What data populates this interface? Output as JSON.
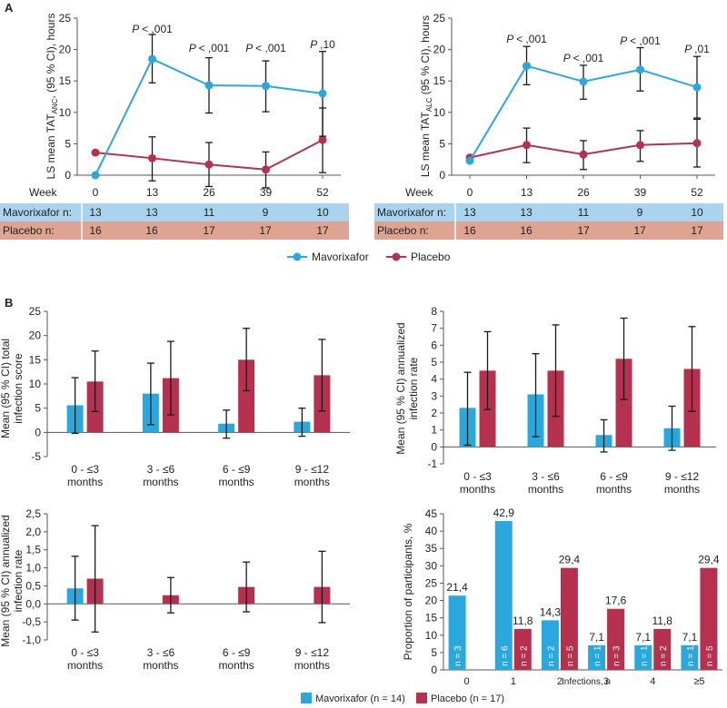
{
  "panels": {
    "a_label": "A",
    "b_label": "B"
  },
  "colors": {
    "mavorixafor": "#29a8dd",
    "placebo": "#b5314e",
    "row_mav": "#a9d3ee",
    "row_pla": "#dea391",
    "axis": "#555555",
    "errorbar": "#1a1a1a"
  },
  "week_label": "Week",
  "tables": {
    "mav_label": "Mavorixafor n:",
    "pla_label": "Placebo n:",
    "anc": {
      "mav": [
        "13",
        "13",
        "11",
        "9",
        "10"
      ],
      "pla": [
        "16",
        "16",
        "17",
        "17",
        "17"
      ]
    },
    "alc": {
      "mav": [
        "13",
        "13",
        "11",
        "9",
        "10"
      ],
      "pla": [
        "16",
        "16",
        "17",
        "17",
        "17"
      ]
    }
  },
  "legend_a": {
    "mav": "Mavorixafor",
    "pla": "Placebo"
  },
  "legend_b": {
    "mav": "Mavorixafor (n = 14)",
    "pla": "Placebo (n = 17)"
  },
  "chart_data": [
    {
      "id": "anc",
      "type": "line",
      "ylabel_parts": [
        "LS mean TAT",
        "ANC",
        ", (95 % CI), hours"
      ],
      "x": [
        0,
        13,
        26,
        39,
        52
      ],
      "xticks": [
        "0",
        "13",
        "26",
        "39",
        "52"
      ],
      "ylim": [
        0,
        25
      ],
      "yticks": [
        0,
        5,
        10,
        15,
        20,
        25
      ],
      "series": [
        {
          "name": "Mavorixafor",
          "values": [
            0,
            18.5,
            14.3,
            14.2,
            13.0
          ],
          "lower": [
            null,
            14.7,
            9.9,
            10.1,
            6.2
          ],
          "upper": [
            null,
            22.4,
            18.7,
            18.2,
            19.7
          ]
        },
        {
          "name": "Placebo",
          "values": [
            3.6,
            2.7,
            1.7,
            0.9,
            5.6
          ],
          "lower": [
            null,
            -0.9,
            -1.8,
            -2.0,
            0.4
          ],
          "upper": [
            null,
            6.1,
            5.2,
            3.7,
            10.7
          ]
        }
      ],
      "annotations": [
        {
          "x": 13,
          "label": "< ,001"
        },
        {
          "x": 26,
          "label": "< ,001"
        },
        {
          "x": 39,
          "label": "< ,001"
        },
        {
          "x": 52,
          "label": ",10"
        }
      ]
    },
    {
      "id": "alc",
      "type": "line",
      "ylabel_parts": [
        "LS mean TAT",
        "ALC",
        " (95 % CI), hours"
      ],
      "x": [
        0,
        13,
        26,
        39,
        52
      ],
      "xticks": [
        "0",
        "13",
        "26",
        "39",
        "52"
      ],
      "ylim": [
        0,
        25
      ],
      "yticks": [
        0,
        5,
        10,
        15,
        20,
        25
      ],
      "series": [
        {
          "name": "Mavorixafor",
          "values": [
            2.3,
            17.4,
            14.9,
            16.8,
            14.0
          ],
          "lower": [
            null,
            14.4,
            12.1,
            13.4,
            9.1
          ],
          "upper": [
            null,
            20.5,
            17.5,
            20.3,
            18.9
          ]
        },
        {
          "name": "Placebo",
          "values": [
            2.8,
            4.8,
            3.3,
            4.8,
            5.1
          ],
          "lower": [
            null,
            2.0,
            0.9,
            2.2,
            1.3
          ],
          "upper": [
            null,
            7.5,
            5.5,
            7.1,
            8.9
          ]
        }
      ],
      "annotations": [
        {
          "x": 13,
          "label": "< ,001"
        },
        {
          "x": 26,
          "label": "< ,001"
        },
        {
          "x": 39,
          "label": "< ,001"
        },
        {
          "x": 52,
          "label": ",01"
        }
      ]
    },
    {
      "id": "score",
      "type": "bar",
      "ylabel_lines": [
        "Mean (95 % CI) total",
        "infection score"
      ],
      "categories": [
        [
          "0 - ≤3",
          "months"
        ],
        [
          "3 - ≤6",
          "months"
        ],
        [
          "6 - ≤9",
          "months"
        ],
        [
          "9 - ≤12",
          "months"
        ]
      ],
      "ylim": [
        -5,
        25
      ],
      "yticks": [
        -5,
        0,
        5,
        10,
        15,
        20,
        25
      ],
      "series": [
        {
          "name": "Mavorixafor",
          "values": [
            5.6,
            8.0,
            1.8,
            2.2
          ],
          "lower": [
            -0.2,
            1.6,
            -1.2,
            -0.8
          ],
          "upper": [
            11.3,
            14.3,
            4.6,
            5.0
          ]
        },
        {
          "name": "Placebo",
          "values": [
            10.5,
            11.2,
            15.0,
            11.8
          ],
          "lower": [
            4.3,
            3.6,
            8.6,
            4.4
          ],
          "upper": [
            16.8,
            18.8,
            21.5,
            19.2
          ]
        }
      ]
    },
    {
      "id": "rate1",
      "type": "bar",
      "ylabel_lines": [
        "Mean (95 % CI) annualized",
        "infection rate"
      ],
      "categories": [
        [
          "0 - ≤3",
          "months"
        ],
        [
          "3 - ≤6",
          "months"
        ],
        [
          "6 - ≤9",
          "months"
        ],
        [
          "9 - ≤12",
          "months"
        ]
      ],
      "ylim": [
        -1,
        8
      ],
      "yticks": [
        -1,
        0,
        1,
        2,
        3,
        4,
        5,
        6,
        7,
        8
      ],
      "series": [
        {
          "name": "Mavorixafor",
          "values": [
            2.3,
            3.1,
            0.7,
            1.1
          ],
          "lower": [
            0.1,
            0.6,
            -0.3,
            -0.2
          ],
          "upper": [
            4.4,
            5.5,
            1.6,
            2.4
          ]
        },
        {
          "name": "Placebo",
          "values": [
            4.5,
            4.5,
            5.2,
            4.6
          ],
          "lower": [
            2.2,
            1.8,
            2.8,
            2.1
          ],
          "upper": [
            6.8,
            7.2,
            7.6,
            7.1
          ]
        }
      ]
    },
    {
      "id": "rate2",
      "type": "bar",
      "ylabel_lines": [
        "Mean (95 % CI) annualized",
        "infection rate"
      ],
      "categories": [
        [
          "0 - ≤3",
          "months"
        ],
        [
          "3 - ≤6",
          "months"
        ],
        [
          "6 - ≤9",
          "months"
        ],
        [
          "9 - ≤12",
          "months"
        ]
      ],
      "ylim": [
        -1.0,
        2.5
      ],
      "yticks": [
        "-1,0",
        "-0,5",
        "0,0",
        "0,5",
        "1,0",
        "1,5",
        "2,0",
        "2,5"
      ],
      "ytick_values": [
        -1.0,
        -0.5,
        0,
        0.5,
        1.0,
        1.5,
        2.0,
        2.5
      ],
      "series": [
        {
          "name": "Mavorixafor",
          "values": [
            0.43,
            null,
            null,
            null
          ],
          "lower": [
            -0.45,
            null,
            null,
            null
          ],
          "upper": [
            1.32,
            null,
            null,
            null
          ]
        },
        {
          "name": "Placebo",
          "values": [
            0.7,
            0.24,
            0.47,
            0.47
          ],
          "lower": [
            -0.78,
            -0.25,
            -0.22,
            -0.52
          ],
          "upper": [
            2.17,
            0.73,
            1.16,
            1.46
          ]
        }
      ]
    },
    {
      "id": "proportion",
      "type": "bar",
      "ylabel_lines": [
        "Proportion of participants, %"
      ],
      "xlabel": "Infections, n",
      "categories": [
        "0",
        "1",
        "2",
        "3",
        "4",
        "≥5"
      ],
      "ylim": [
        0,
        45
      ],
      "yticks": [
        0,
        5,
        10,
        15,
        20,
        25,
        30,
        35,
        40,
        45
      ],
      "series": [
        {
          "name": "Mavorixafor",
          "values": [
            21.4,
            42.9,
            14.3,
            7.1,
            7.1,
            7.1
          ],
          "labels": [
            "21,4",
            "42,9",
            "14,3",
            "7,1",
            "7,1",
            "7,1"
          ],
          "n": [
            "n = 3",
            "n = 6",
            "n = 2",
            "n = 1",
            "n = 1",
            "n = 1"
          ]
        },
        {
          "name": "Placebo",
          "values": [
            null,
            11.8,
            29.4,
            17.6,
            11.8,
            29.4
          ],
          "labels": [
            null,
            "11,8",
            "29,4",
            "17,6",
            "11,8",
            "29,4"
          ],
          "n": [
            null,
            "n = 2",
            "n = 5",
            "n = 3",
            "n = 2",
            "n = 5"
          ]
        }
      ]
    }
  ]
}
